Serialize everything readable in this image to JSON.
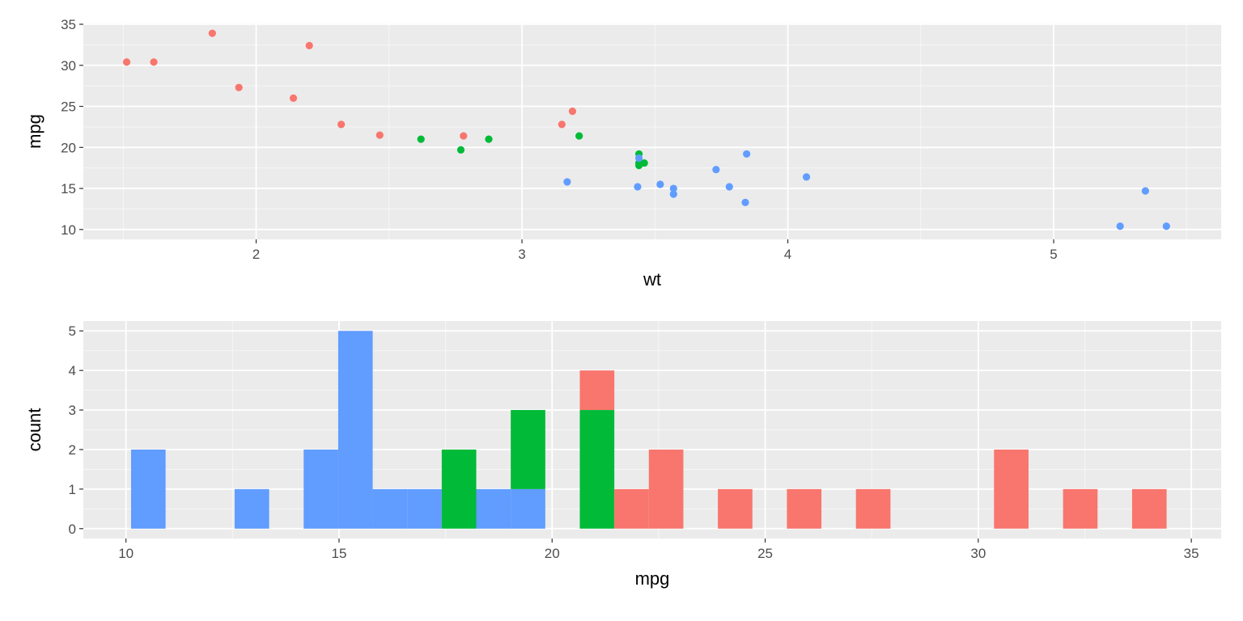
{
  "palette": {
    "panel_bg": "#EBEBEB",
    "grid_major": "#FFFFFF",
    "tick_color": "#333333",
    "label_color": "#4D4D4D"
  },
  "chart_data": [
    {
      "type": "scatter",
      "title": "",
      "xlabel": "wt",
      "ylabel": "mpg",
      "xlim": [
        1.35,
        5.63
      ],
      "ylim": [
        8.8,
        35.1
      ],
      "x_ticks": [
        2,
        3,
        4,
        5
      ],
      "y_ticks": [
        10,
        15,
        20,
        25,
        30,
        35
      ],
      "grid": true,
      "legend": "none",
      "series": [
        {
          "color": "#F8766D",
          "points": [
            [
              2.32,
              22.8
            ],
            [
              3.19,
              24.4
            ],
            [
              3.15,
              22.8
            ],
            [
              2.2,
              32.4
            ],
            [
              1.615,
              30.4
            ],
            [
              1.835,
              33.9
            ],
            [
              2.465,
              21.5
            ],
            [
              1.935,
              27.3
            ],
            [
              2.14,
              26.0
            ],
            [
              1.513,
              30.4
            ],
            [
              2.78,
              21.4
            ]
          ]
        },
        {
          "color": "#00BA38",
          "points": [
            [
              2.62,
              21.0
            ],
            [
              2.875,
              21.0
            ],
            [
              3.215,
              21.4
            ],
            [
              3.44,
              18.1
            ],
            [
              3.44,
              19.2
            ],
            [
              3.44,
              17.8
            ],
            [
              2.77,
              19.7
            ],
            [
              3.46,
              18.1
            ]
          ]
        },
        {
          "color": "#619CFF",
          "points": [
            [
              3.44,
              18.7
            ],
            [
              3.57,
              14.3
            ],
            [
              4.07,
              16.4
            ],
            [
              3.73,
              17.3
            ],
            [
              3.78,
              15.2
            ],
            [
              5.25,
              10.4
            ],
            [
              5.424,
              10.4
            ],
            [
              5.345,
              14.7
            ],
            [
              3.52,
              15.5
            ],
            [
              3.435,
              15.2
            ],
            [
              3.84,
              13.3
            ],
            [
              3.845,
              19.2
            ],
            [
              3.17,
              15.8
            ],
            [
              3.57,
              15.0
            ]
          ]
        }
      ]
    },
    {
      "type": "bar",
      "subtype": "stacked-histogram",
      "title": "",
      "xlabel": "mpg",
      "ylabel": "count",
      "xlim": [
        9.0,
        35.7
      ],
      "ylim": [
        -0.25,
        5.25
      ],
      "x_ticks": [
        10,
        15,
        20,
        25,
        30,
        35
      ],
      "y_ticks": [
        0,
        1,
        2,
        3,
        4,
        5
      ],
      "grid": true,
      "legend": "none",
      "bin_width": 0.81,
      "bins": [
        {
          "x0": 10.12,
          "segments": [
            {
              "color": "#619CFF",
              "count": 2
            }
          ]
        },
        {
          "x0": 12.55,
          "segments": [
            {
              "color": "#619CFF",
              "count": 1
            }
          ]
        },
        {
          "x0": 14.17,
          "segments": [
            {
              "color": "#619CFF",
              "count": 2
            }
          ]
        },
        {
          "x0": 14.98,
          "segments": [
            {
              "color": "#619CFF",
              "count": 5
            }
          ]
        },
        {
          "x0": 15.79,
          "segments": [
            {
              "color": "#619CFF",
              "count": 1
            }
          ]
        },
        {
          "x0": 16.6,
          "segments": [
            {
              "color": "#619CFF",
              "count": 1
            }
          ]
        },
        {
          "x0": 17.41,
          "segments": [
            {
              "color": "#00BA38",
              "count": 2
            }
          ]
        },
        {
          "x0": 18.22,
          "segments": [
            {
              "color": "#619CFF",
              "count": 1
            }
          ]
        },
        {
          "x0": 19.03,
          "segments": [
            {
              "color": "#619CFF",
              "count": 1
            },
            {
              "color": "#00BA38",
              "count": 2
            }
          ]
        },
        {
          "x0": 20.65,
          "segments": [
            {
              "color": "#00BA38",
              "count": 3
            },
            {
              "color": "#F8766D",
              "count": 1
            }
          ]
        },
        {
          "x0": 21.46,
          "segments": [
            {
              "color": "#F8766D",
              "count": 1
            }
          ]
        },
        {
          "x0": 22.27,
          "segments": [
            {
              "color": "#F8766D",
              "count": 2
            }
          ]
        },
        {
          "x0": 23.89,
          "segments": [
            {
              "color": "#F8766D",
              "count": 1
            }
          ]
        },
        {
          "x0": 25.51,
          "segments": [
            {
              "color": "#F8766D",
              "count": 1
            }
          ]
        },
        {
          "x0": 27.13,
          "segments": [
            {
              "color": "#F8766D",
              "count": 1
            }
          ]
        },
        {
          "x0": 30.37,
          "segments": [
            {
              "color": "#F8766D",
              "count": 2
            }
          ]
        },
        {
          "x0": 31.99,
          "segments": [
            {
              "color": "#F8766D",
              "count": 1
            }
          ]
        },
        {
          "x0": 33.61,
          "segments": [
            {
              "color": "#F8766D",
              "count": 1
            }
          ]
        }
      ]
    }
  ]
}
